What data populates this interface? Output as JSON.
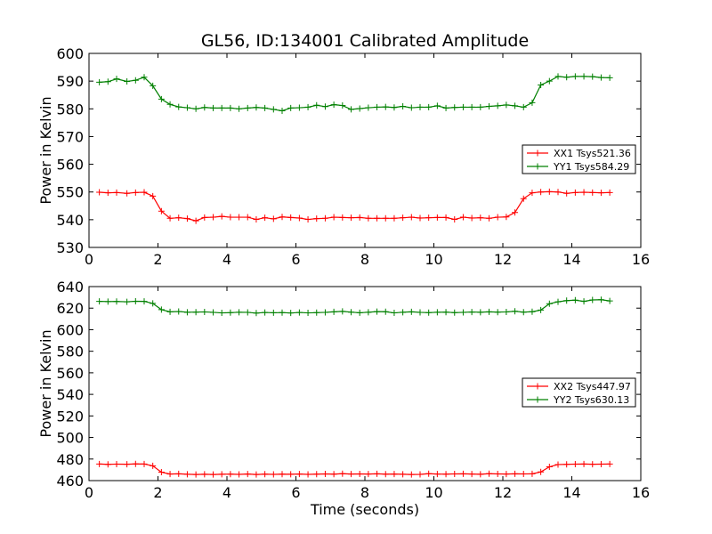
{
  "figure": {
    "title": "GL56, ID:134001 Calibrated Amplitude",
    "xlabel": "Time (seconds)"
  },
  "chart_data": [
    {
      "type": "line",
      "title": "GL56, ID:134001 Calibrated Amplitude",
      "xlabel": "",
      "ylabel": "Power in Kelvin",
      "xlim": [
        0,
        16
      ],
      "ylim": [
        530,
        600
      ],
      "xticks": [
        0,
        2,
        4,
        6,
        8,
        10,
        12,
        14,
        16
      ],
      "yticks": [
        530,
        540,
        550,
        560,
        570,
        580,
        590,
        600
      ],
      "grid": false,
      "legend_position": "center-right",
      "x": [
        0.3,
        0.55,
        0.8,
        1.1,
        1.35,
        1.6,
        1.85,
        2.1,
        2.35,
        2.6,
        2.85,
        3.1,
        3.35,
        3.6,
        3.85,
        4.1,
        4.35,
        4.6,
        4.85,
        5.1,
        5.35,
        5.6,
        5.85,
        6.1,
        6.35,
        6.6,
        6.85,
        7.1,
        7.35,
        7.6,
        7.85,
        8.1,
        8.35,
        8.6,
        8.85,
        9.1,
        9.35,
        9.6,
        9.85,
        10.1,
        10.35,
        10.6,
        10.85,
        11.1,
        11.35,
        11.6,
        11.85,
        12.1,
        12.35,
        12.6,
        12.85,
        13.1,
        13.35,
        13.6,
        13.85,
        14.1,
        14.35,
        14.6,
        14.85,
        15.1
      ],
      "series": [
        {
          "name": "XX1 Tsys521.36",
          "color": "#ff0000",
          "values": [
            549.9,
            549.7,
            549.8,
            549.5,
            549.8,
            549.9,
            548.5,
            543.1,
            540.5,
            540.7,
            540.4,
            539.6,
            540.8,
            540.9,
            541.2,
            540.9,
            540.9,
            540.9,
            540.1,
            540.7,
            540.3,
            541.0,
            540.8,
            540.6,
            540.1,
            540.4,
            540.5,
            540.9,
            540.8,
            540.7,
            540.8,
            540.5,
            540.5,
            540.5,
            540.5,
            540.7,
            540.9,
            540.6,
            540.7,
            540.8,
            540.8,
            540.1,
            540.9,
            540.6,
            540.7,
            540.5,
            540.9,
            541.0,
            542.6,
            547.6,
            549.7,
            550.0,
            550.1,
            550.0,
            549.5,
            549.8,
            549.9,
            549.8,
            549.7,
            549.8
          ]
        },
        {
          "name": "YY1 Tsys584.29",
          "color": "#008000",
          "values": [
            589.6,
            589.8,
            590.8,
            589.9,
            590.3,
            591.4,
            588.3,
            583.5,
            581.6,
            580.7,
            580.4,
            580.0,
            580.5,
            580.3,
            580.3,
            580.3,
            580.0,
            580.3,
            580.5,
            580.3,
            579.8,
            579.3,
            580.3,
            580.4,
            580.6,
            581.3,
            580.8,
            581.5,
            581.2,
            579.8,
            580.1,
            580.4,
            580.6,
            580.7,
            580.5,
            580.9,
            580.4,
            580.6,
            580.6,
            581.1,
            580.3,
            580.5,
            580.6,
            580.6,
            580.6,
            580.9,
            581.1,
            581.4,
            581.1,
            580.6,
            582.2,
            588.6,
            590.0,
            591.7,
            591.4,
            591.7,
            591.7,
            591.6,
            591.3,
            591.2
          ]
        }
      ]
    },
    {
      "type": "line",
      "title": "",
      "xlabel": "Time (seconds)",
      "ylabel": "Power in Kelvin",
      "xlim": [
        0,
        16
      ],
      "ylim": [
        460,
        640
      ],
      "xticks": [
        0,
        2,
        4,
        6,
        8,
        10,
        12,
        14,
        16
      ],
      "yticks": [
        460,
        480,
        500,
        520,
        540,
        560,
        580,
        600,
        620,
        640
      ],
      "grid": false,
      "legend_position": "center-right",
      "x": [
        0.3,
        0.55,
        0.8,
        1.1,
        1.35,
        1.6,
        1.85,
        2.1,
        2.35,
        2.6,
        2.85,
        3.1,
        3.35,
        3.6,
        3.85,
        4.1,
        4.35,
        4.6,
        4.85,
        5.1,
        5.35,
        5.6,
        5.85,
        6.1,
        6.35,
        6.6,
        6.85,
        7.1,
        7.35,
        7.6,
        7.85,
        8.1,
        8.35,
        8.6,
        8.85,
        9.1,
        9.35,
        9.6,
        9.85,
        10.1,
        10.35,
        10.6,
        10.85,
        11.1,
        11.35,
        11.6,
        11.85,
        12.1,
        12.35,
        12.6,
        12.85,
        13.1,
        13.35,
        13.6,
        13.85,
        14.1,
        14.35,
        14.6,
        14.85,
        15.1
      ],
      "series": [
        {
          "name": "XX2 Tsys447.97",
          "color": "#ff0000",
          "values": [
            475.4,
            475.1,
            475.3,
            475.2,
            475.5,
            475.4,
            473.7,
            467.8,
            466.1,
            466.3,
            465.9,
            465.7,
            465.9,
            465.7,
            465.9,
            466.0,
            465.8,
            466.1,
            465.7,
            466.0,
            465.8,
            466.0,
            465.9,
            466.1,
            465.8,
            466.0,
            466.2,
            466.0,
            466.4,
            466.1,
            466.2,
            466.1,
            466.3,
            466.0,
            466.1,
            465.9,
            465.7,
            465.8,
            466.4,
            466.1,
            466.0,
            466.2,
            466.3,
            466.1,
            465.9,
            466.4,
            466.2,
            466.1,
            466.3,
            466.2,
            466.3,
            468.0,
            472.8,
            474.9,
            475.1,
            475.3,
            475.4,
            475.2,
            475.3,
            475.4
          ]
        },
        {
          "name": "YY2 Tsys630.13",
          "color": "#008000",
          "values": [
            626.3,
            626.1,
            626.2,
            625.9,
            626.4,
            626.3,
            624.4,
            618.6,
            616.6,
            616.9,
            616.2,
            616.3,
            616.5,
            616.1,
            615.6,
            615.8,
            616.2,
            616.1,
            615.4,
            616.0,
            615.7,
            615.9,
            615.5,
            616.0,
            615.6,
            615.8,
            616.1,
            616.6,
            617.0,
            616.3,
            615.7,
            616.2,
            616.8,
            616.7,
            615.6,
            616.2,
            616.6,
            616.1,
            615.8,
            616.2,
            616.3,
            615.8,
            616.1,
            616.4,
            616.2,
            616.6,
            616.3,
            616.5,
            617.1,
            616.3,
            616.7,
            618.2,
            624.1,
            625.9,
            627.0,
            627.4,
            626.3,
            627.6,
            627.8,
            626.7
          ]
        }
      ]
    }
  ]
}
